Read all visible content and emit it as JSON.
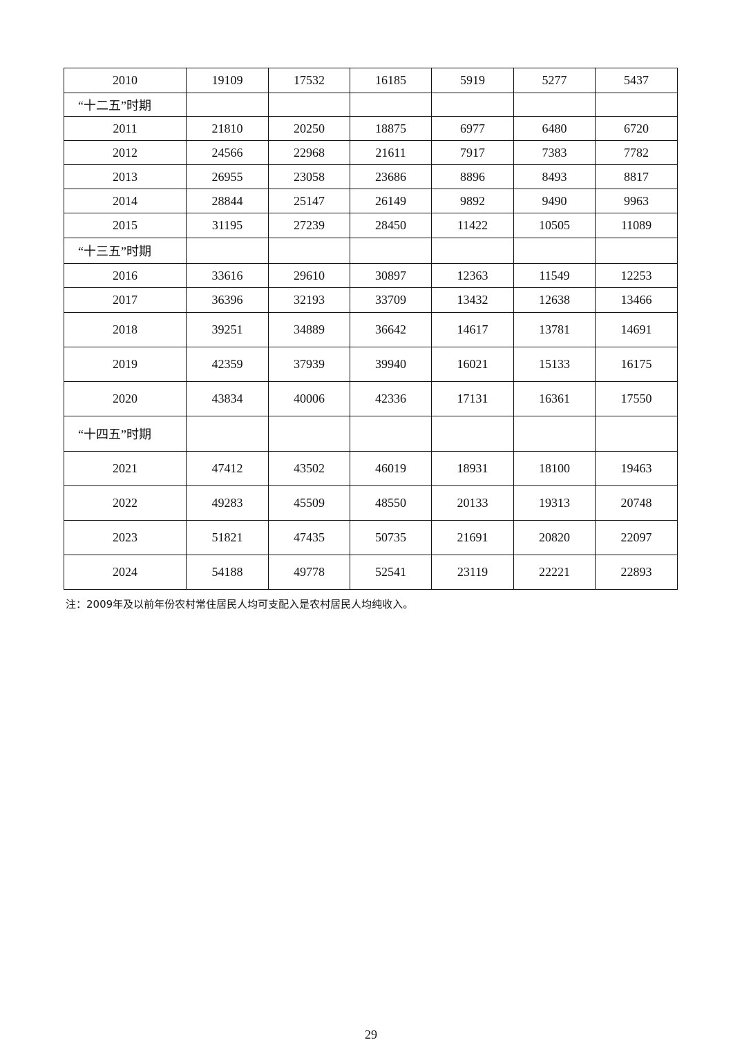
{
  "table": {
    "rows": [
      {
        "label": "2010",
        "values": [
          "19109",
          "17532",
          "16185",
          "5919",
          "5277",
          "5437"
        ]
      },
      {
        "label": "“十二五”时期",
        "period": true,
        "values": [
          "",
          "",
          "",
          "",
          "",
          ""
        ]
      },
      {
        "label": "2011",
        "values": [
          "21810",
          "20250",
          "18875",
          "6977",
          "6480",
          "6720"
        ]
      },
      {
        "label": "2012",
        "values": [
          "24566",
          "22968",
          "21611",
          "7917",
          "7383",
          "7782"
        ]
      },
      {
        "label": "2013",
        "values": [
          "26955",
          "23058",
          "23686",
          "8896",
          "8493",
          "8817"
        ]
      },
      {
        "label": "2014",
        "values": [
          "28844",
          "25147",
          "26149",
          "9892",
          "9490",
          "9963"
        ]
      },
      {
        "label": "2015",
        "values": [
          "31195",
          "27239",
          "28450",
          "11422",
          "10505",
          "11089"
        ]
      },
      {
        "label": "“十三五”时期",
        "period": true,
        "values": [
          "",
          "",
          "",
          "",
          "",
          ""
        ]
      },
      {
        "label": "2016",
        "values": [
          "33616",
          "29610",
          "30897",
          "12363",
          "11549",
          "12253"
        ]
      },
      {
        "label": "2017",
        "values": [
          "36396",
          "32193",
          "33709",
          "13432",
          "12638",
          "13466"
        ]
      },
      {
        "label": "2018",
        "values": [
          "39251",
          "34889",
          "36642",
          "14617",
          "13781",
          "14691"
        ]
      },
      {
        "label": "2019",
        "values": [
          "42359",
          "37939",
          "39940",
          "16021",
          "15133",
          "16175"
        ]
      },
      {
        "label": "2020",
        "values": [
          "43834",
          "40006",
          "42336",
          "17131",
          "16361",
          "17550"
        ]
      },
      {
        "label": "“十四五”时期",
        "period": true,
        "values": [
          "",
          "",
          "",
          "",
          "",
          ""
        ]
      },
      {
        "label": "2021",
        "values": [
          "47412",
          "43502",
          "46019",
          "18931",
          "18100",
          "19463"
        ]
      },
      {
        "label": "2022",
        "values": [
          "49283",
          "45509",
          "48550",
          "20133",
          "19313",
          "20748"
        ]
      },
      {
        "label": "2023",
        "values": [
          "51821",
          "47435",
          "50735",
          "21691",
          "20820",
          "22097"
        ]
      },
      {
        "label": "2024",
        "values": [
          "54188",
          "49778",
          "52541",
          "23119",
          "22221",
          "22893"
        ]
      }
    ]
  },
  "note": "注：2009年及以前年份农村常住居民人均可支配入是农村居民人均纯收入。",
  "page_number": "29"
}
